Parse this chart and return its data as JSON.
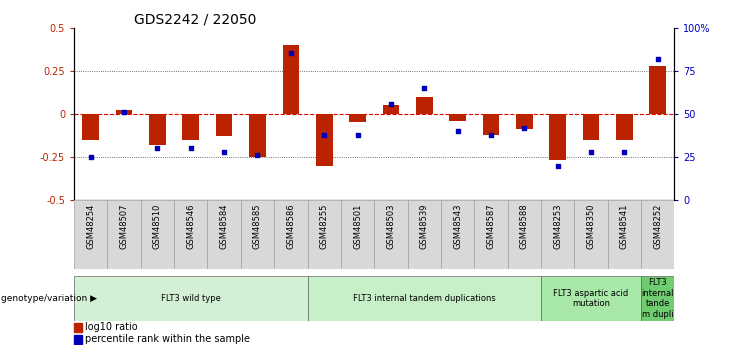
{
  "title": "GDS2242 / 22050",
  "samples": [
    "GSM48254",
    "GSM48507",
    "GSM48510",
    "GSM48546",
    "GSM48584",
    "GSM48585",
    "GSM48586",
    "GSM48255",
    "GSM48501",
    "GSM48503",
    "GSM48539",
    "GSM48543",
    "GSM48587",
    "GSM48588",
    "GSM48253",
    "GSM48350",
    "GSM48541",
    "GSM48252"
  ],
  "log10_ratio": [
    -0.15,
    0.02,
    -0.18,
    -0.15,
    -0.13,
    -0.25,
    0.4,
    -0.3,
    -0.05,
    0.05,
    0.1,
    -0.04,
    -0.12,
    -0.09,
    -0.27,
    -0.15,
    -0.15,
    0.28
  ],
  "percentile_rank": [
    25,
    51,
    30,
    30,
    28,
    26,
    85,
    38,
    38,
    56,
    65,
    40,
    38,
    42,
    20,
    28,
    28,
    82
  ],
  "groups": [
    {
      "label": "FLT3 wild type",
      "start": 0,
      "end": 7,
      "color": "#d4f0d4"
    },
    {
      "label": "FLT3 internal tandem duplications",
      "start": 7,
      "end": 14,
      "color": "#c8f0c8"
    },
    {
      "label": "FLT3 aspartic acid\nmutation",
      "start": 14,
      "end": 17,
      "color": "#a8e8a8"
    },
    {
      "label": "FLT3\ninternal\ntande\nm dupli",
      "start": 17,
      "end": 18,
      "color": "#70cc70"
    }
  ],
  "ylim_left": [
    -0.5,
    0.5
  ],
  "ylim_right": [
    0,
    100
  ],
  "bar_color_red": "#bb2200",
  "dot_color_blue": "#0000bb",
  "background_color": "#ffffff",
  "zero_line_color": "#dd0000",
  "dotted_line_color": "#444444",
  "title_fontsize": 10,
  "tick_fontsize": 7,
  "label_fontsize": 7
}
